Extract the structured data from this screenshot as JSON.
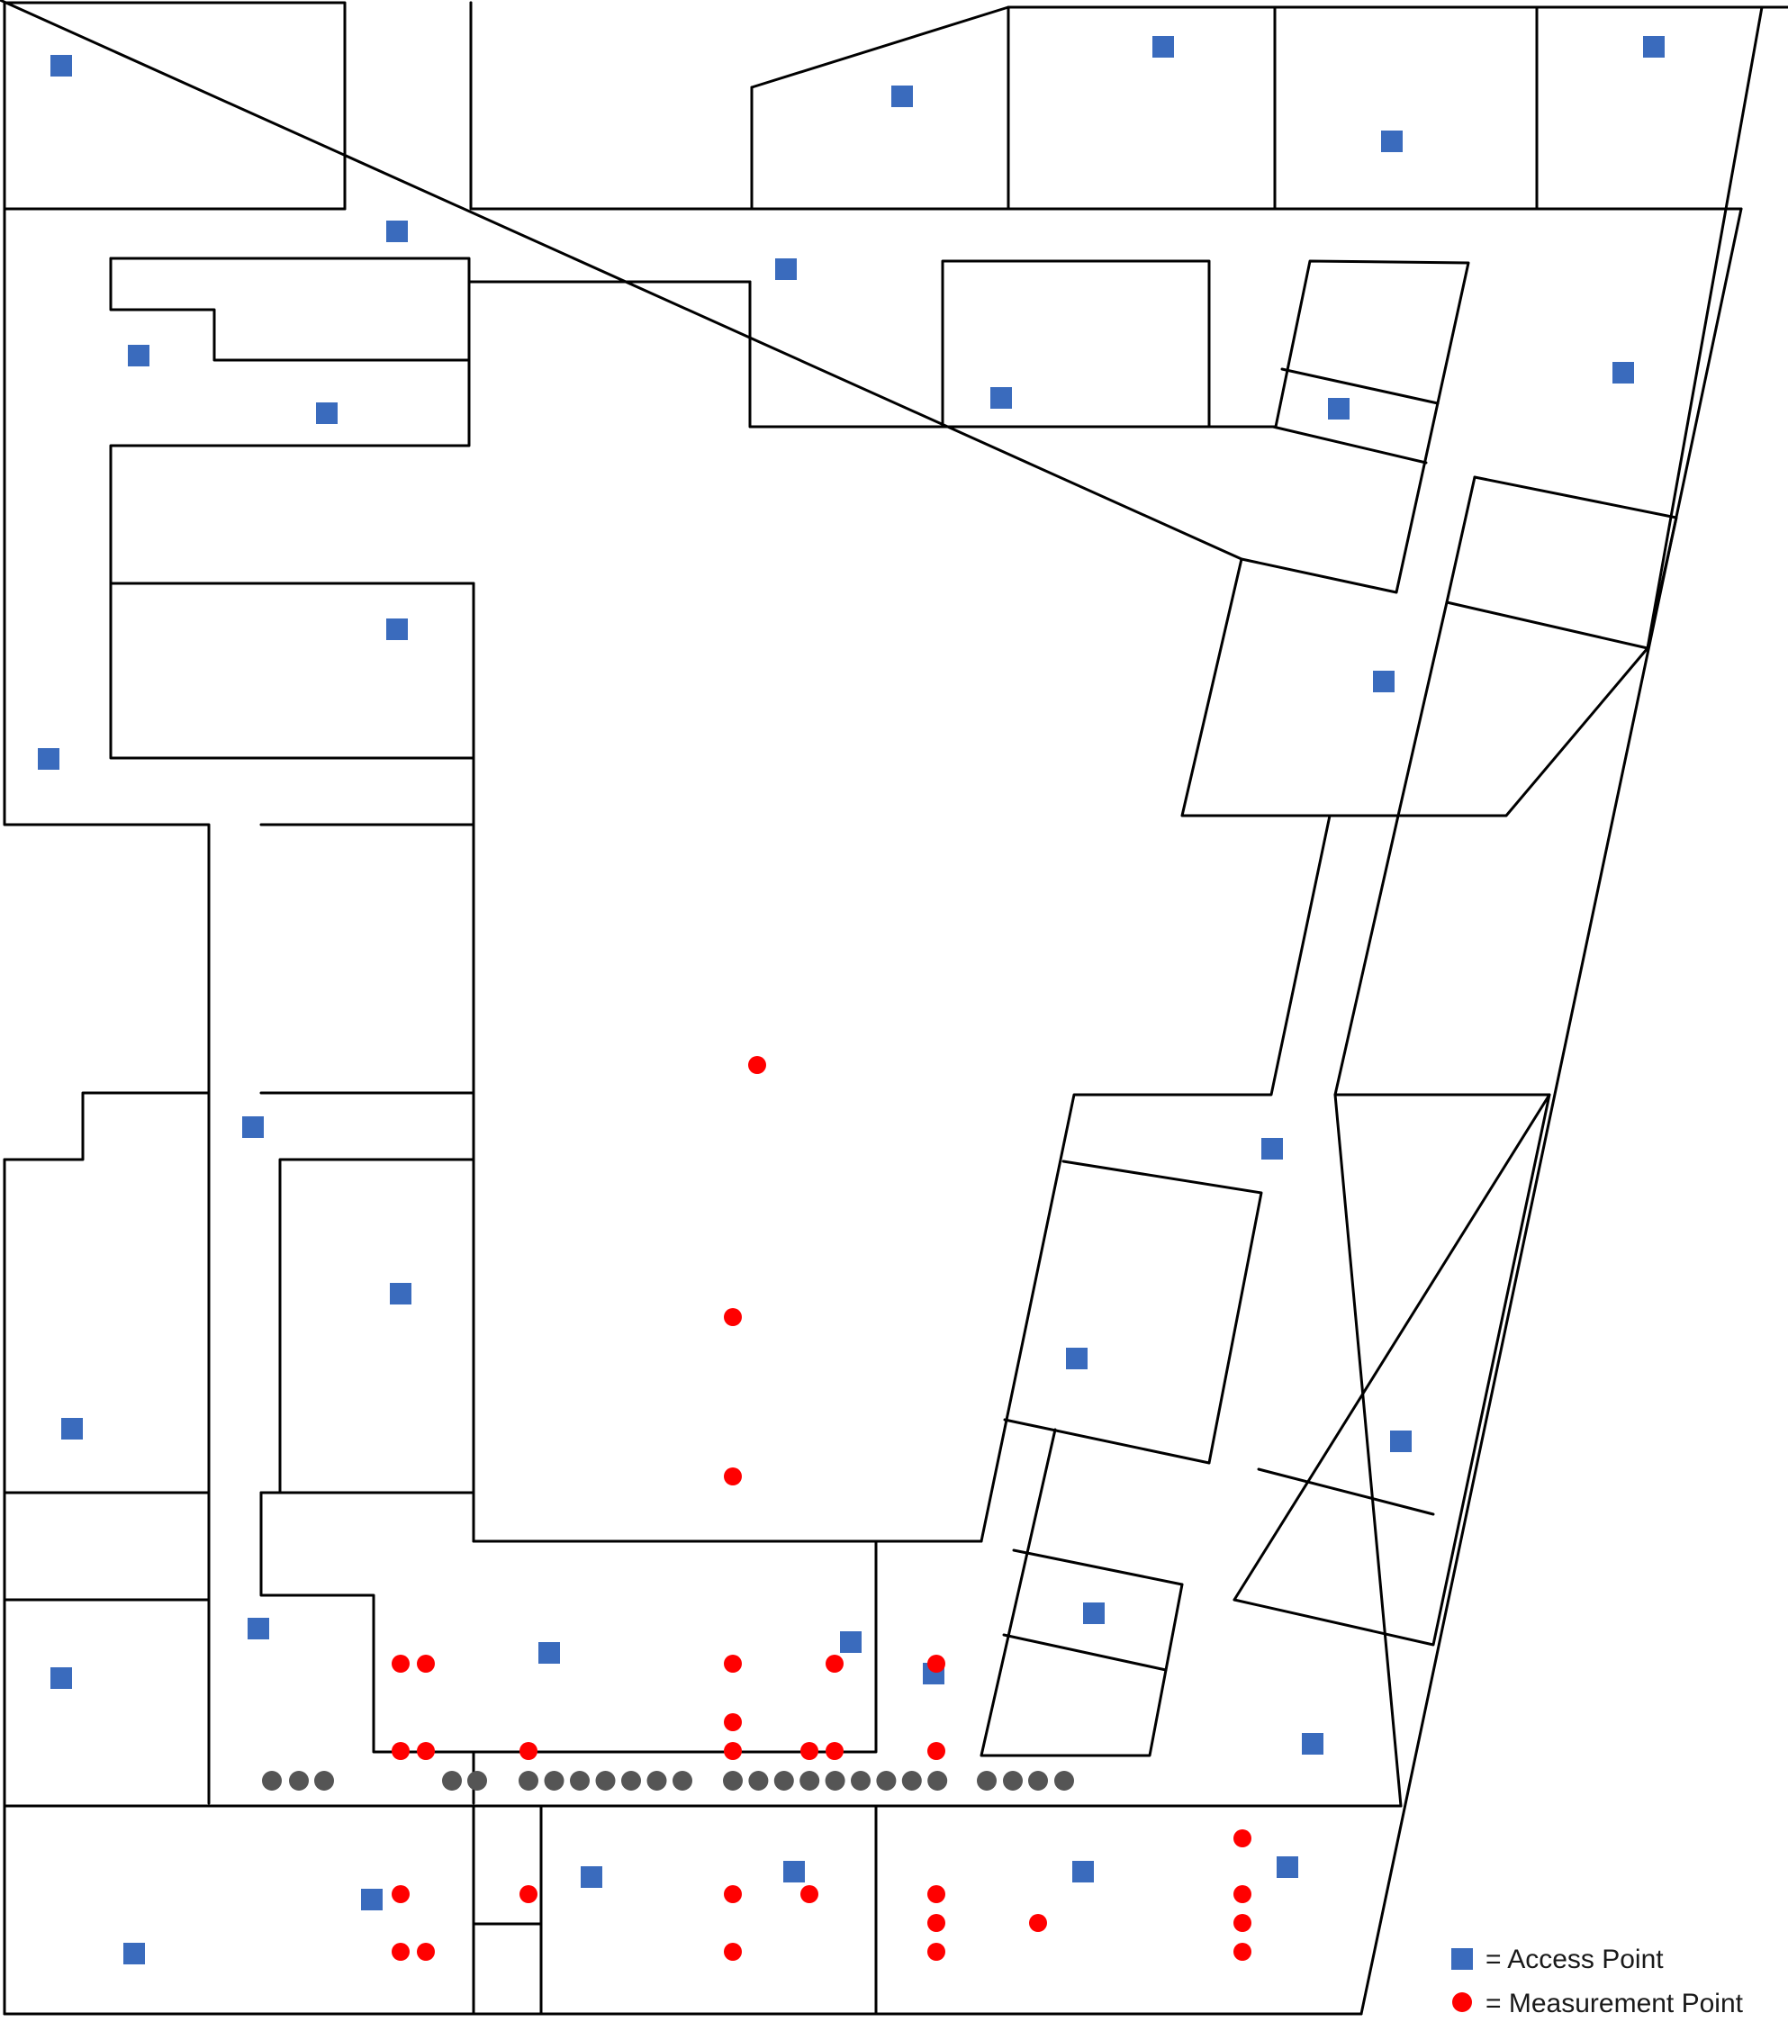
{
  "legend": {
    "access_point_label": "= Access Point",
    "measurement_point_label": "= Measurement Point"
  },
  "colors": {
    "wall": "#000000",
    "access_point": "#3a6bbd",
    "measurement_point": "#ff0000",
    "path_point": "#555555",
    "background": "#ffffff"
  },
  "icons": {
    "access_point": "blue-square-icon",
    "measurement_point": "red-dot-icon",
    "path_point": "gray-dot-icon"
  }
}
